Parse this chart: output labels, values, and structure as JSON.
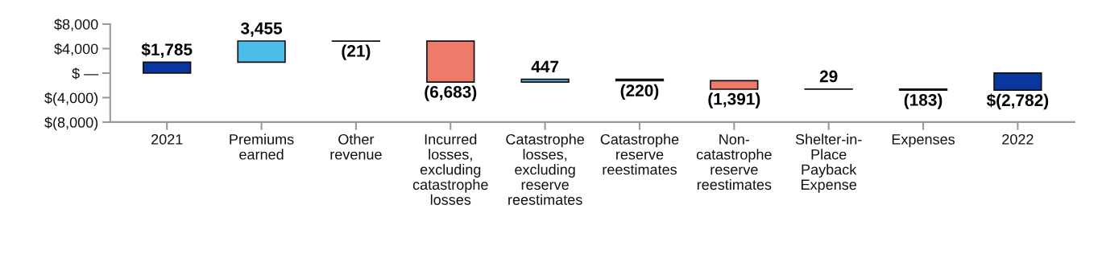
{
  "chart_data": {
    "type": "bar",
    "categories": [
      "2021",
      "Premiums\nearned",
      "Other\nrevenue",
      "Incurred\nlosses,\nexcluding\ncatastrophe\nlosses",
      "Catastrophe\nlosses,\nexcluding\nreserve\nreestimates",
      "Catastrophe\nreserve\nreestimates",
      "Non-\ncatastrophe\nreserve\nreestimates",
      "Shelter-in-\nPlace\nPayback\nExpense",
      "Expenses",
      "2022"
    ],
    "base": [
      0,
      1785,
      5240,
      5219,
      -1464,
      -1017,
      -1237,
      -2628,
      -2599,
      0
    ],
    "values": [
      1785,
      3455,
      -21,
      -6683,
      447,
      -220,
      -1391,
      29,
      -183,
      -2782
    ],
    "value_labels": [
      "$1,785",
      "3,455",
      "(21)",
      "(6,683)",
      "447",
      "(220)",
      "(1,391)",
      "29",
      "(183)",
      "$(2,782)"
    ],
    "colors": [
      "#0a36a0",
      "#4bbde6",
      "#000000",
      "#ee7b6a",
      "#4bbde6",
      "#000000",
      "#ee7b6a",
      "#000000",
      "#000000",
      "#0a36a0"
    ],
    "ylim": [
      -8000,
      8000
    ],
    "yticks": [
      {
        "value": 8000,
        "label": "$8,000"
      },
      {
        "value": 4000,
        "label": "$4,000"
      },
      {
        "value": 0,
        "label": "$ —"
      },
      {
        "value": -4000,
        "label": "$(4,000)"
      },
      {
        "value": -8000,
        "label": "$(8,000)"
      }
    ],
    "grid": false
  }
}
